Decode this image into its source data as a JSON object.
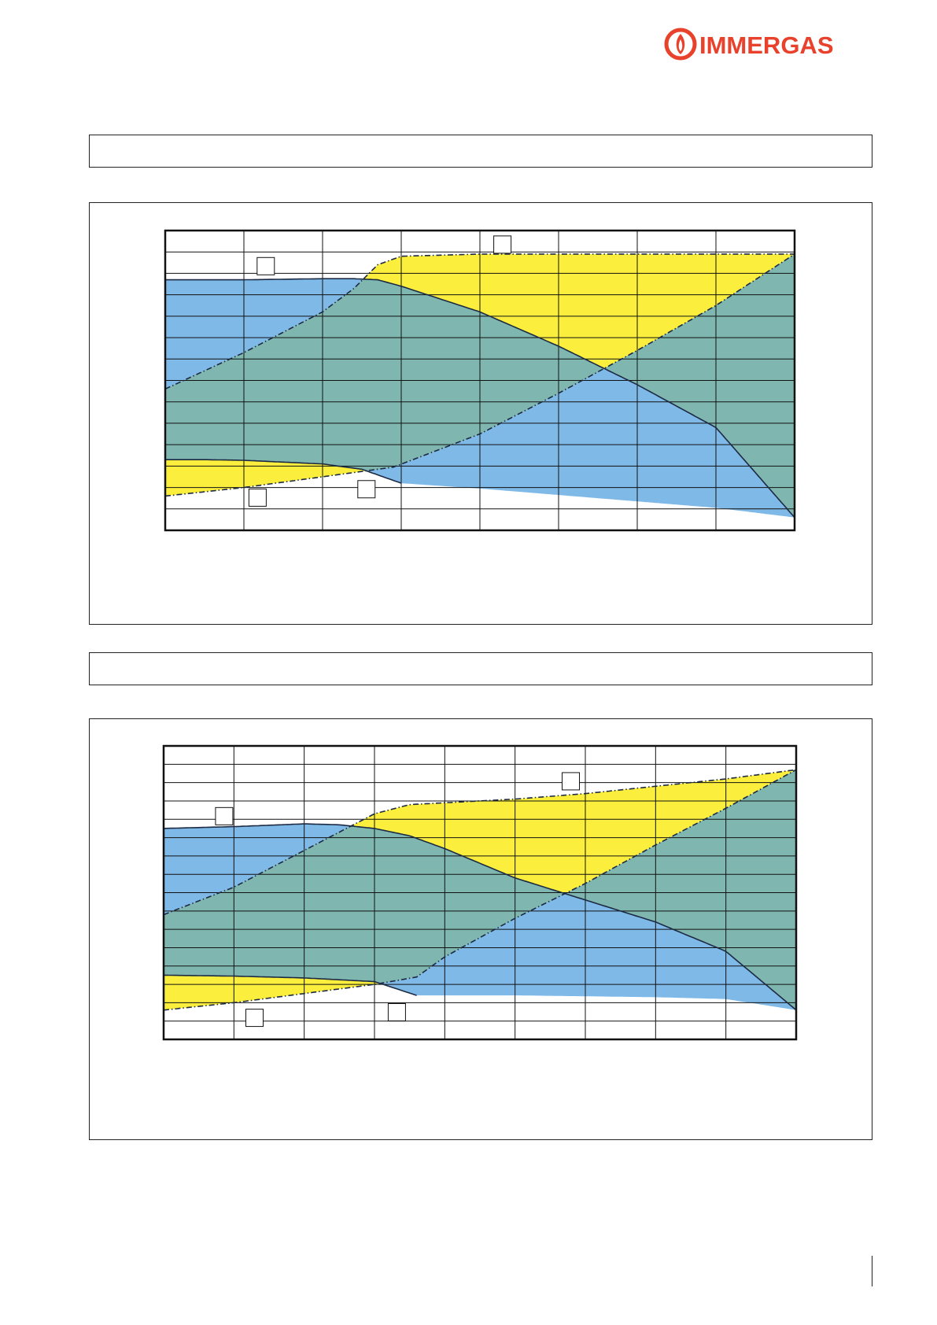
{
  "brand": {
    "name": "IMMERGAS",
    "color": "#e8412c"
  },
  "section_titles": [
    "",
    ""
  ],
  "colors": {
    "blue_area": "#7fb9e8",
    "yellow_area": "#fbee3c",
    "overlap_area": "#7fb7b0",
    "curve": "#1c2a44",
    "grid": "#111111"
  },
  "chart_data": [
    {
      "type": "area",
      "title": "",
      "xlabel": "",
      "ylabel": "",
      "grid": true,
      "xlim": [
        0,
        8
      ],
      "ylim": [
        0,
        14
      ],
      "x_divisions": 8,
      "y_divisions": 14,
      "marker_boxes": [
        "",
        "",
        "",
        ""
      ],
      "series": [
        {
          "role": "blue_top",
          "x": [
            0,
            1,
            2,
            2.4,
            2.7,
            3,
            4,
            5,
            6,
            7,
            8
          ],
          "values": [
            11.7,
            11.7,
            11.75,
            11.75,
            11.7,
            11.4,
            10.2,
            8.6,
            6.8,
            4.8,
            0.6
          ]
        },
        {
          "role": "blue_bottom",
          "x": [
            0,
            0.5,
            1,
            2,
            2.5,
            3,
            4,
            5,
            6,
            7,
            8
          ],
          "values": [
            3.3,
            3.3,
            3.27,
            3.1,
            2.85,
            2.2,
            1.95,
            1.65,
            1.35,
            1.05,
            0.6
          ]
        },
        {
          "role": "yellow_top",
          "x": [
            0,
            1,
            2,
            2.4,
            2.7,
            3,
            4,
            5,
            6,
            7,
            8
          ],
          "values": [
            6.6,
            8.3,
            10.2,
            11.3,
            12.4,
            12.8,
            12.9,
            12.9,
            12.9,
            12.9,
            12.9
          ]
        },
        {
          "role": "yellow_bottom",
          "x": [
            0,
            1,
            2,
            2.9,
            4,
            5,
            6,
            7,
            8
          ],
          "values": [
            1.6,
            2,
            2.5,
            2.95,
            4.5,
            6.4,
            8.4,
            10.5,
            12.9
          ]
        }
      ]
    },
    {
      "type": "area",
      "title": "",
      "xlabel": "",
      "ylabel": "",
      "grid": true,
      "xlim": [
        0,
        9
      ],
      "ylim": [
        0,
        16
      ],
      "x_divisions": 9,
      "y_divisions": 16,
      "marker_boxes": [
        "",
        "",
        "",
        ""
      ],
      "series": [
        {
          "role": "blue_top",
          "x": [
            0,
            1,
            2,
            2.5,
            3,
            3.5,
            4,
            5,
            6,
            7,
            8,
            9
          ],
          "values": [
            11.5,
            11.6,
            11.75,
            11.7,
            11.5,
            11.1,
            10.4,
            8.8,
            7.6,
            6.4,
            4.8,
            1.6
          ]
        },
        {
          "role": "blue_bottom",
          "x": [
            0,
            1,
            2,
            3,
            3.6,
            4,
            5,
            6,
            7,
            8,
            9
          ],
          "values": [
            3.5,
            3.45,
            3.35,
            3.15,
            2.4,
            2.4,
            2.4,
            2.35,
            2.3,
            2.2,
            1.6
          ]
        },
        {
          "role": "yellow_top",
          "x": [
            0,
            1,
            2,
            2.5,
            3,
            3.5,
            4,
            5,
            6,
            7,
            8,
            9
          ],
          "values": [
            6.8,
            8.3,
            10.3,
            11.3,
            12.3,
            12.8,
            12.9,
            13.1,
            13.4,
            13.8,
            14.2,
            14.7
          ]
        },
        {
          "role": "yellow_bottom",
          "x": [
            0,
            1,
            2,
            3,
            3.6,
            4,
            5,
            6,
            7,
            8,
            9
          ],
          "values": [
            1.6,
            2,
            2.5,
            3,
            3.4,
            4.5,
            6.6,
            8.5,
            10.6,
            12.6,
            14.7
          ]
        }
      ]
    }
  ]
}
